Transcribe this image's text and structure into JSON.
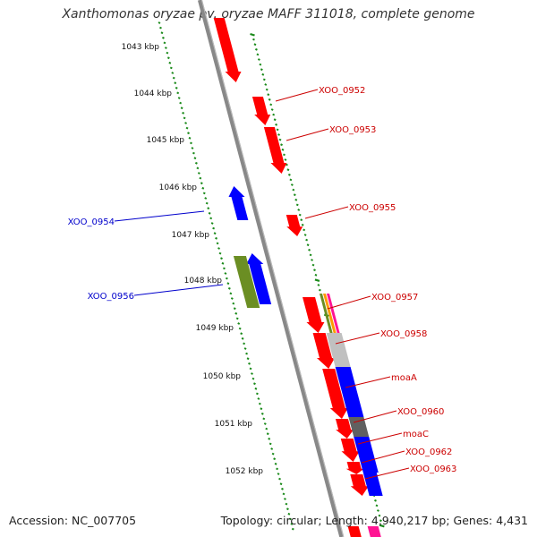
{
  "title": "Xanthomonas oryzae pv. oryzae MAFF 311018, complete genome",
  "footer": {
    "accession": "Accession: NC_007705",
    "summary": "Topology: circular; Length: 4,940,217 bp; Genes: 4,431"
  },
  "colors": {
    "forward_gene": "#ff0000",
    "reverse_gene": "#0000ff",
    "green_gene": "#6b8e23",
    "grey_gene": "#c0c0c0",
    "dark_gene": "#606060",
    "pink_gene": "#ff1493",
    "tick_green": "#1a8a1a",
    "backbone": "#888888",
    "label_forward": "#cc0000",
    "label_reverse": "#0000cc"
  },
  "kbp_ticks": [
    "1043 kbp",
    "1044 kbp",
    "1045 kbp",
    "1046 kbp",
    "1047 kbp",
    "1048 kbp",
    "1049 kbp",
    "1050 kbp",
    "1051 kbp",
    "1052 kbp"
  ],
  "gene_labels": [
    {
      "text": "XOO_0952",
      "strand": "forward"
    },
    {
      "text": "XOO_0953",
      "strand": "forward"
    },
    {
      "text": "XOO_0955",
      "strand": "forward"
    },
    {
      "text": "XOO_0954",
      "strand": "reverse"
    },
    {
      "text": "XOO_0956",
      "strand": "reverse"
    },
    {
      "text": "XOO_0957",
      "strand": "forward"
    },
    {
      "text": "XOO_0958",
      "strand": "forward"
    },
    {
      "text": "moaA",
      "strand": "forward"
    },
    {
      "text": "XOO_0960",
      "strand": "forward"
    },
    {
      "text": "moaC",
      "strand": "forward"
    },
    {
      "text": "XOO_0962",
      "strand": "forward"
    },
    {
      "text": "XOO_0963",
      "strand": "forward"
    }
  ]
}
